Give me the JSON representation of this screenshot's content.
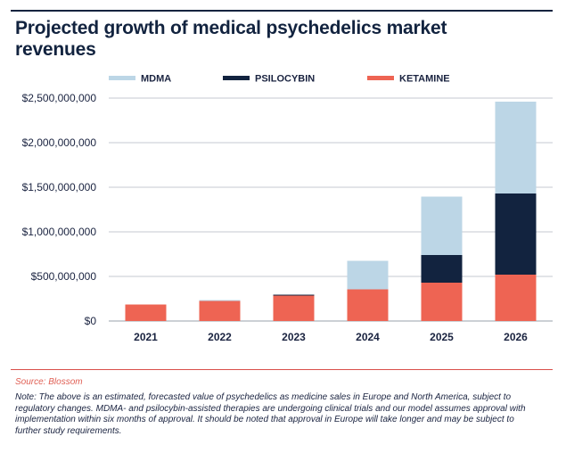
{
  "title": "Projected growth of medical psychedelics market revenues",
  "source": "Source: Blossom",
  "note": "Note: The above is an estimated, forecasted value of psychedelics as medicine sales in Europe and North America, subject to regulatory changes. MDMA- and psilocybin-assisted therapies are undergoing clinical trials and our model assumes approval with implementation within six months of approval. It should be noted that approval in Europe will take longer and may be subject to further study requirements.",
  "chart_data": {
    "type": "bar",
    "stacked": true,
    "title": "Projected growth of medical psychedelics market revenues",
    "xlabel": "",
    "ylabel": "",
    "categories": [
      "2021",
      "2022",
      "2023",
      "2024",
      "2025",
      "2026"
    ],
    "series": [
      {
        "name": "KETAMINE",
        "color": "#ee6453",
        "values": [
          185000000,
          225000000,
          285000000,
          355000000,
          430000000,
          520000000
        ]
      },
      {
        "name": "PSILOCYBIN",
        "color": "#12233f",
        "values": [
          0,
          0,
          10000000,
          0,
          310000000,
          910000000
        ]
      },
      {
        "name": "MDMA",
        "color": "#bcd6e6",
        "values": [
          0,
          10000000,
          0,
          320000000,
          655000000,
          1030000000
        ]
      }
    ],
    "legend_order": [
      "MDMA",
      "PSILOCYBIN",
      "KETAMINE"
    ],
    "legend_position": "top",
    "ylim": [
      0,
      2500000000
    ],
    "yticks": [
      0,
      500000000,
      1000000000,
      1500000000,
      2000000000,
      2500000000
    ],
    "ytick_labels": [
      "$0",
      "$500,000,000",
      "$1,000,000,000",
      "$1,500,000,000",
      "$2,000,000,000",
      "$2,500,000,000"
    ],
    "grid": "horizontal"
  }
}
